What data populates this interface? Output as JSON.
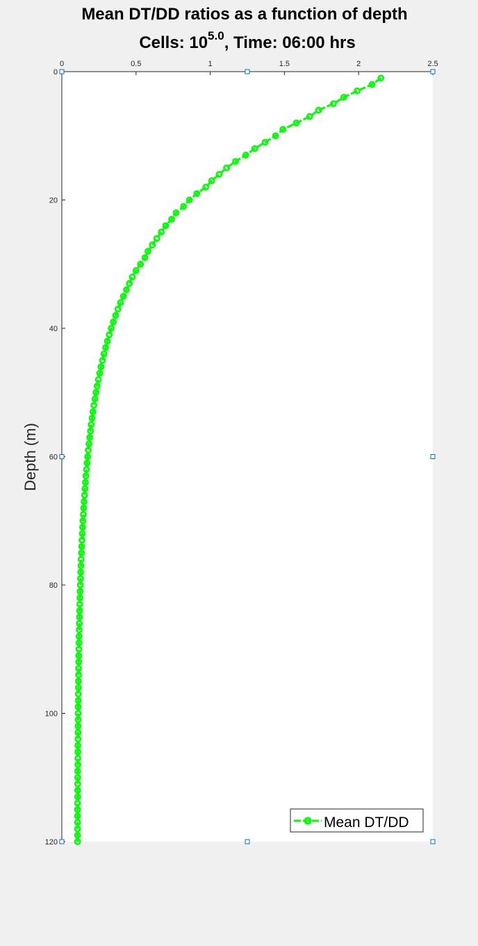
{
  "figure": {
    "title_line1": "Mean DT/DD ratios as a function of depth",
    "title_line2_prefix": "Cells: 10",
    "title_line2_superscript": "5.0",
    "title_line2_suffix": ", Time: 06:00 hrs"
  },
  "chart_data": {
    "type": "line",
    "title": "Mean DT/DD ratios as a function of depth",
    "subtitle": "Cells: 10^5.0, Time: 06:00 hrs",
    "xlabel": "",
    "ylabel": "Depth (m)",
    "xlim": [
      0,
      2.5
    ],
    "ylim": [
      0,
      120
    ],
    "y_reversed": true,
    "x_axis_location": "top",
    "x_ticks": [
      0,
      0.5,
      1,
      1.5,
      2,
      2.5
    ],
    "x_tick_labels": [
      "0",
      "0.5",
      "1",
      "1.5",
      "2",
      "2.5"
    ],
    "y_ticks": [
      0,
      20,
      40,
      60,
      80,
      100,
      120
    ],
    "y_tick_labels": [
      "0",
      "20",
      "40",
      "60",
      "80",
      "100",
      "120"
    ],
    "grid": false,
    "legend_position": "bottom-right",
    "series_color": "#00ff00",
    "series": [
      {
        "name": "Mean DT/DD",
        "marker": "circle",
        "depth": [
          1,
          2,
          3,
          4,
          5,
          6,
          7,
          8,
          9,
          10,
          11,
          12,
          13,
          14,
          15,
          16,
          17,
          18,
          19,
          20,
          21,
          22,
          23,
          24,
          25,
          26,
          27,
          28,
          29,
          30,
          31,
          32,
          33,
          34,
          35,
          36,
          37,
          38,
          39,
          40,
          41,
          42,
          43,
          44,
          45,
          46,
          47,
          48,
          49,
          50,
          51,
          52,
          53,
          54,
          55,
          56,
          57,
          58,
          59,
          60,
          61,
          62,
          63,
          64,
          65,
          66,
          67,
          68,
          69,
          70,
          71,
          72,
          73,
          74,
          75,
          76,
          77,
          78,
          79,
          80,
          81,
          82,
          83,
          84,
          85,
          86,
          87,
          88,
          89,
          90,
          91,
          92,
          93,
          94,
          95,
          96,
          97,
          98,
          99,
          100,
          101,
          102,
          103,
          104,
          105,
          106,
          107,
          108,
          109,
          110,
          111,
          112,
          113,
          114,
          115,
          116,
          117,
          118,
          119,
          120
        ],
        "ratio": [
          2.15,
          2.09,
          1.99,
          1.9,
          1.83,
          1.73,
          1.67,
          1.58,
          1.49,
          1.44,
          1.37,
          1.3,
          1.24,
          1.17,
          1.11,
          1.06,
          1.01,
          0.97,
          0.91,
          0.86,
          0.82,
          0.77,
          0.74,
          0.7,
          0.67,
          0.64,
          0.61,
          0.58,
          0.56,
          0.53,
          0.5,
          0.475,
          0.455,
          0.435,
          0.415,
          0.395,
          0.378,
          0.362,
          0.347,
          0.333,
          0.32,
          0.307,
          0.295,
          0.284,
          0.274,
          0.264,
          0.255,
          0.246,
          0.238,
          0.23,
          0.223,
          0.216,
          0.21,
          0.204,
          0.198,
          0.193,
          0.188,
          0.183,
          0.178,
          0.174,
          0.17,
          0.166,
          0.162,
          0.159,
          0.156,
          0.153,
          0.15,
          0.147,
          0.145,
          0.142,
          0.14,
          0.138,
          0.136,
          0.134,
          0.132,
          0.13,
          0.129,
          0.127,
          0.126,
          0.125,
          0.123,
          0.122,
          0.121,
          0.12,
          0.119,
          0.118,
          0.117,
          0.116,
          0.116,
          0.115,
          0.114,
          0.114,
          0.113,
          0.113,
          0.112,
          0.112,
          0.111,
          0.111,
          0.11,
          0.11,
          0.11,
          0.109,
          0.109,
          0.109,
          0.108,
          0.108,
          0.108,
          0.108,
          0.107,
          0.107,
          0.107,
          0.107,
          0.107,
          0.106,
          0.106,
          0.106,
          0.106,
          0.106,
          0.106,
          0.106
        ]
      }
    ]
  }
}
